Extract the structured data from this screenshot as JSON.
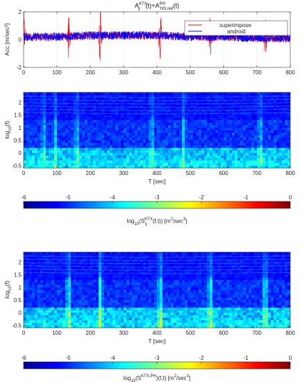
{
  "chart_data": [
    {
      "type": "line",
      "title_parts": {
        "a": "A",
        "a_sup": "KTX",
        "a_sub": "y",
        "mid": "(t)+A",
        "b_sup": "PH",
        "b_sub": "NS,red",
        "end": "(t)"
      },
      "ylabel": "Acc [m/sec²]",
      "xlim": [
        0,
        800
      ],
      "ylim": [
        -2,
        2
      ],
      "xticks": [
        "0",
        "100",
        "200",
        "300",
        "400",
        "500",
        "600",
        "700",
        "800"
      ],
      "yticks": [
        "-2",
        "0",
        "2"
      ],
      "grid": true,
      "legend_position": "top-right",
      "legend": [
        "superimpose",
        "android"
      ],
      "series_colors": {
        "superimpose": "#ff0000",
        "android": "#0000ff"
      },
      "series": [
        {
          "name": "android",
          "description_level": 0,
          "amplitude": 0.35,
          "x": [
            0,
            100,
            200,
            300,
            400,
            500,
            600,
            700,
            800
          ],
          "y": [
            0.2,
            0.2,
            0.3,
            0.3,
            0.3,
            0.2,
            0.2,
            0.1,
            0.1
          ]
        },
        {
          "name": "superimpose",
          "spike_x": [
            0,
            135,
            230,
            410,
            560,
            725
          ],
          "spike_y": [
            1.7,
            1.4,
            1.7,
            1.5,
            1.3,
            1.1
          ]
        }
      ]
    },
    {
      "type": "heatmap",
      "xlabel": "T [sec]",
      "ylabel_parts": {
        "a": "log",
        "a_sub": "10",
        "b": "(f)"
      },
      "xlim": [
        0,
        800
      ],
      "ylim": [
        -0.6,
        2.4
      ],
      "xticks": [
        "0",
        "100",
        "200",
        "300",
        "400",
        "500",
        "600",
        "700",
        "800"
      ],
      "yticks": [
        "2",
        "1.5",
        "1",
        "0.5",
        "0",
        "-0.5"
      ],
      "vertical_events_x": [
        60,
        95,
        160,
        385,
        480,
        710
      ],
      "colorbar": {
        "range": [
          -6,
          0
        ],
        "ticks": [
          "-6",
          "-5",
          "-4",
          "-3",
          "-2",
          "-1",
          "0"
        ],
        "label_parts": {
          "a": "log",
          "a_sub": "10",
          "b": "(S",
          "b_sup": "KTX",
          "b_sub2": "y",
          "c": "(f,t)) [m",
          "c_sup": "2",
          "d": "/sec",
          "d_sup": "3",
          "e": "]"
        }
      }
    },
    {
      "type": "heatmap",
      "xlabel": "T [sec]",
      "ylabel_parts": {
        "a": "log",
        "a_sub": "10",
        "b": "(f)"
      },
      "xlim": [
        0,
        800
      ],
      "ylim": [
        -0.6,
        2.4
      ],
      "xticks": [
        "0",
        "100",
        "200",
        "300",
        "400",
        "500",
        "600",
        "700",
        "800"
      ],
      "yticks": [
        "2",
        "1.5",
        "1",
        "0.5",
        "0",
        "-0.5"
      ],
      "vertical_events_x": [
        135,
        230,
        410,
        560,
        725
      ],
      "colorbar": {
        "range": [
          -6,
          0
        ],
        "ticks": [
          "-6",
          "-5",
          "-4",
          "-3",
          "-2",
          "-1",
          "0"
        ],
        "label_parts": {
          "a": "log",
          "a_sub": "10",
          "b": "(S",
          "b_sup": "KTX,PH",
          "c": ")(f,t) [m",
          "c_sup": "2",
          "d": "/sec",
          "d_sup": "3",
          "e": "]"
        }
      }
    }
  ]
}
